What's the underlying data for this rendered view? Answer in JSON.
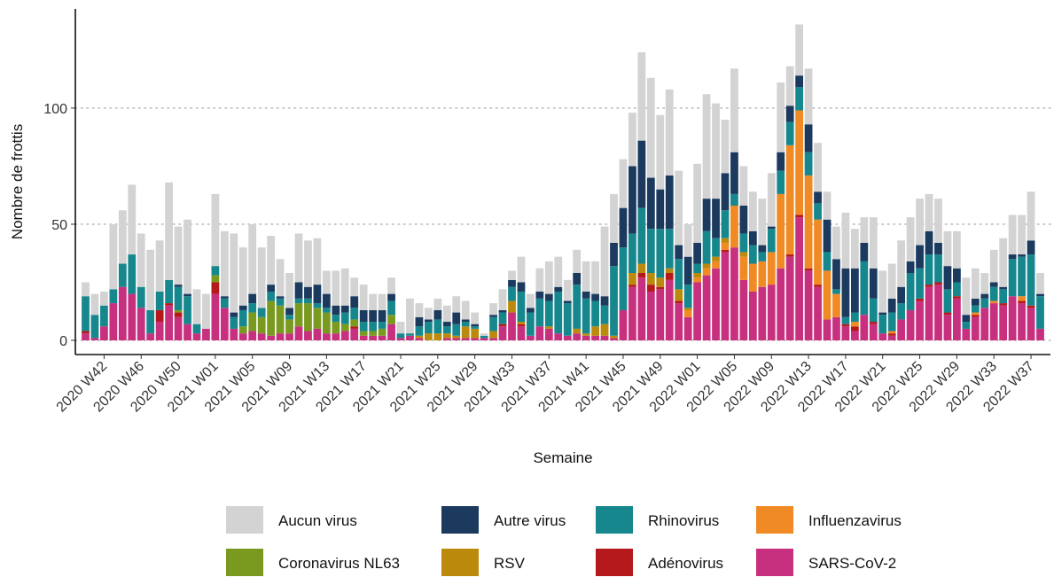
{
  "chart_data": {
    "type": "stacked_bar",
    "x_label": "Semaine",
    "y_label": "Nombre de frottis",
    "legend_position": "bottom",
    "grid": true,
    "ylim": [
      -6.1,
      142.7
    ],
    "yticks": [
      0,
      50,
      100
    ],
    "categories": [
      null,
      null,
      "2020 W42",
      null,
      null,
      null,
      "2020 W46",
      null,
      null,
      null,
      "2020 W50",
      null,
      null,
      null,
      "2021 W01",
      null,
      null,
      null,
      "2021 W05",
      null,
      null,
      null,
      "2021 W09",
      null,
      null,
      null,
      "2021 W13",
      null,
      null,
      null,
      "2021 W17",
      null,
      null,
      null,
      "2021 W21",
      null,
      null,
      null,
      "2021 W25",
      null,
      null,
      null,
      "2021 W29",
      null,
      null,
      null,
      "2021 W33",
      null,
      null,
      null,
      "2021 W37",
      null,
      null,
      null,
      "2021 W41",
      null,
      null,
      null,
      "2021 W45",
      null,
      null,
      null,
      "2021 W49",
      null,
      null,
      null,
      "2022 W01",
      null,
      null,
      null,
      "2022 W05",
      null,
      null,
      null,
      "2022 W09",
      null,
      null,
      null,
      "2022 W13",
      null,
      null,
      null,
      "2022 W17",
      null,
      null,
      null,
      "2022 W21",
      null,
      null,
      null,
      "2022 W25",
      null,
      null,
      null,
      "2022 W29",
      null,
      null,
      null,
      "2022 W33",
      null,
      null,
      null,
      "2022 W37",
      null
    ],
    "series": [
      {
        "name": "Aucun virus",
        "color": "#d3d3d3",
        "values": [
          6,
          9,
          6,
          28,
          23,
          30,
          23,
          26,
          22,
          42,
          25,
          32,
          15,
          15,
          31,
          28,
          34,
          25,
          30,
          26,
          21,
          16,
          15,
          21,
          20,
          20,
          10,
          15,
          16,
          8,
          11,
          7,
          7,
          7,
          5,
          15,
          6,
          5,
          5,
          7,
          7,
          8,
          5,
          1,
          5,
          9,
          4,
          11,
          6,
          10,
          14,
          13,
          9,
          10,
          13,
          14,
          30,
          21,
          21,
          23,
          38,
          43,
          32,
          37,
          32,
          14,
          34,
          45,
          41,
          23,
          36,
          17,
          17,
          20,
          23,
          30,
          17,
          22,
          24,
          21,
          12,
          14,
          24,
          17,
          11,
          22,
          18,
          15,
          20,
          19,
          20,
          16,
          19,
          15,
          16,
          16,
          13,
          9,
          14,
          21,
          17,
          17,
          21,
          9
        ]
      },
      {
        "name": "Coronavirus NL63",
        "color": "#7a9a1f",
        "values": [
          0,
          0,
          0,
          0,
          0,
          0,
          0,
          0,
          0,
          0,
          1,
          0,
          0,
          0,
          3,
          0,
          0,
          3,
          8,
          7,
          15,
          12,
          6,
          10,
          12,
          9,
          9,
          5,
          3,
          3,
          2,
          2,
          3,
          4,
          0,
          0,
          0,
          0,
          0,
          0,
          0,
          0,
          0,
          0,
          0,
          0,
          0,
          0,
          0,
          0,
          0,
          0,
          0,
          0,
          0,
          0,
          0,
          0,
          0,
          0,
          0,
          0,
          0,
          0,
          0,
          0,
          0,
          0,
          0,
          0,
          0,
          0,
          0,
          0,
          0,
          0,
          0,
          0,
          0,
          0,
          0,
          0,
          0,
          0,
          0,
          0,
          0,
          0,
          0,
          0,
          0,
          0,
          0,
          0,
          0,
          0,
          0,
          0,
          0,
          0,
          0,
          0,
          0,
          0
        ]
      },
      {
        "name": "Autre virus",
        "color": "#1b3a5e",
        "values": [
          0,
          0,
          0,
          0,
          0,
          0,
          0,
          0,
          0,
          0,
          1,
          1,
          0,
          0,
          0,
          1,
          2,
          2,
          4,
          0,
          3,
          1,
          3,
          7,
          5,
          8,
          6,
          4,
          3,
          5,
          5,
          5,
          5,
          3,
          0,
          0,
          4,
          1,
          4,
          2,
          5,
          1,
          1,
          0,
          1,
          1,
          3,
          4,
          2,
          3,
          3,
          2,
          1,
          5,
          3,
          3,
          4,
          10,
          17,
          29,
          29,
          22,
          17,
          23,
          6,
          12,
          9,
          14,
          17,
          16,
          18,
          12,
          6,
          3,
          1,
          8,
          7,
          5,
          12,
          5,
          14,
          13,
          21,
          19,
          8,
          13,
          1,
          6,
          7,
          5,
          10,
          10,
          5,
          10,
          6,
          3,
          3,
          2,
          2,
          1,
          2,
          1,
          6,
          1
        ]
      },
      {
        "name": "RSV",
        "color": "#bb8a0c",
        "values": [
          0,
          0,
          0,
          0,
          0,
          0,
          0,
          0,
          0,
          0,
          0,
          0,
          0,
          0,
          0,
          0,
          0,
          0,
          0,
          0,
          0,
          0,
          0,
          0,
          0,
          0,
          0,
          0,
          0,
          0,
          0,
          0,
          0,
          0,
          0,
          0,
          1,
          3,
          3,
          2,
          1,
          5,
          4,
          0,
          3,
          0,
          5,
          1,
          0,
          0,
          1,
          0,
          0,
          2,
          1,
          4,
          5,
          1,
          0,
          5,
          4,
          5,
          4,
          2,
          5,
          1,
          2,
          2,
          2,
          2,
          0,
          2,
          0,
          0,
          0,
          0,
          0,
          0,
          0,
          0,
          0,
          0,
          0,
          0,
          0,
          0,
          0,
          0,
          0,
          0,
          0,
          0,
          0,
          0,
          0,
          0,
          0,
          0,
          0,
          0,
          0,
          0,
          0,
          0
        ]
      },
      {
        "name": "Rhinovirus",
        "color": "#17878e",
        "values": [
          15,
          10,
          9,
          6,
          10,
          17,
          9,
          10,
          8,
          10,
          10,
          12,
          4,
          0,
          4,
          4,
          5,
          7,
          4,
          4,
          4,
          3,
          2,
          2,
          2,
          2,
          2,
          3,
          5,
          5,
          4,
          4,
          3,
          6,
          2,
          1,
          4,
          5,
          6,
          3,
          5,
          2,
          1,
          1,
          6,
          5,
          6,
          13,
          10,
          12,
          11,
          18,
          14,
          19,
          15,
          11,
          8,
          30,
          27,
          17,
          24,
          19,
          21,
          17,
          13,
          10,
          4,
          14,
          8,
          12,
          5,
          8,
          8,
          4,
          10,
          10,
          10,
          10,
          10,
          7,
          8,
          2,
          3,
          4,
          23,
          10,
          8,
          8,
          7,
          16,
          13,
          13,
          12,
          10,
          6,
          3,
          3,
          4,
          6,
          6,
          16,
          17,
          22,
          14
        ]
      },
      {
        "name": "Adénovirus",
        "color": "#b5191b",
        "values": [
          1,
          0,
          0,
          0,
          0,
          0,
          0,
          0,
          5,
          1,
          2,
          0,
          0,
          0,
          5,
          0,
          0,
          0,
          0,
          0,
          0,
          0,
          0,
          0,
          0,
          0,
          0,
          0,
          0,
          1,
          0,
          0,
          0,
          0,
          0,
          0,
          0,
          0,
          0,
          0,
          0,
          0,
          0,
          0,
          0,
          1,
          0,
          1,
          0,
          0,
          0,
          0,
          0,
          0,
          0,
          0,
          0,
          0,
          0,
          1,
          2,
          3,
          1,
          3,
          1,
          0,
          0,
          0,
          0,
          1,
          0,
          0,
          0,
          0,
          0,
          0,
          1,
          1,
          1,
          1,
          0,
          0,
          1,
          2,
          0,
          1,
          0,
          1,
          0,
          0,
          1,
          1,
          1,
          1,
          1,
          0,
          1,
          0,
          0,
          1,
          0,
          1,
          1,
          0
        ]
      },
      {
        "name": "Influenzavirus",
        "color": "#f08a24",
        "values": [
          0,
          0,
          0,
          0,
          0,
          0,
          0,
          0,
          0,
          0,
          0,
          0,
          0,
          0,
          0,
          0,
          0,
          0,
          0,
          0,
          0,
          0,
          0,
          0,
          0,
          0,
          0,
          0,
          0,
          0,
          0,
          0,
          0,
          0,
          0,
          0,
          0,
          0,
          0,
          0,
          0,
          0,
          0,
          0,
          0,
          0,
          0,
          0,
          0,
          0,
          0,
          0,
          0,
          0,
          0,
          0,
          0,
          0,
          0,
          0,
          0,
          0,
          0,
          0,
          0,
          3,
          2,
          3,
          3,
          3,
          18,
          10,
          12,
          11,
          14,
          32,
          47,
          45,
          40,
          28,
          21,
          10,
          0,
          2,
          0,
          0,
          0,
          1,
          0,
          0,
          0,
          0,
          0,
          0,
          0,
          0,
          1,
          0,
          1,
          0,
          0,
          2,
          0,
          0
        ]
      },
      {
        "name": "SARS-CoV-2",
        "color": "#c7307f",
        "values": [
          3,
          1,
          6,
          16,
          23,
          20,
          14,
          3,
          8,
          15,
          10,
          7,
          3,
          5,
          20,
          14,
          5,
          3,
          4,
          3,
          2,
          3,
          3,
          6,
          4,
          5,
          3,
          3,
          4,
          5,
          2,
          2,
          2,
          7,
          1,
          2,
          1,
          0,
          0,
          1,
          1,
          1,
          1,
          1,
          1,
          6,
          12,
          6,
          2,
          6,
          5,
          3,
          2,
          3,
          2,
          2,
          2,
          1,
          13,
          23,
          27,
          21,
          22,
          26,
          16,
          10,
          25,
          28,
          31,
          38,
          40,
          26,
          21,
          23,
          24,
          31,
          36,
          53,
          30,
          23,
          9,
          10,
          6,
          4,
          11,
          7,
          3,
          2,
          9,
          13,
          17,
          23,
          24,
          11,
          18,
          5,
          10,
          14,
          16,
          15,
          19,
          16,
          14,
          5
        ]
      }
    ]
  }
}
